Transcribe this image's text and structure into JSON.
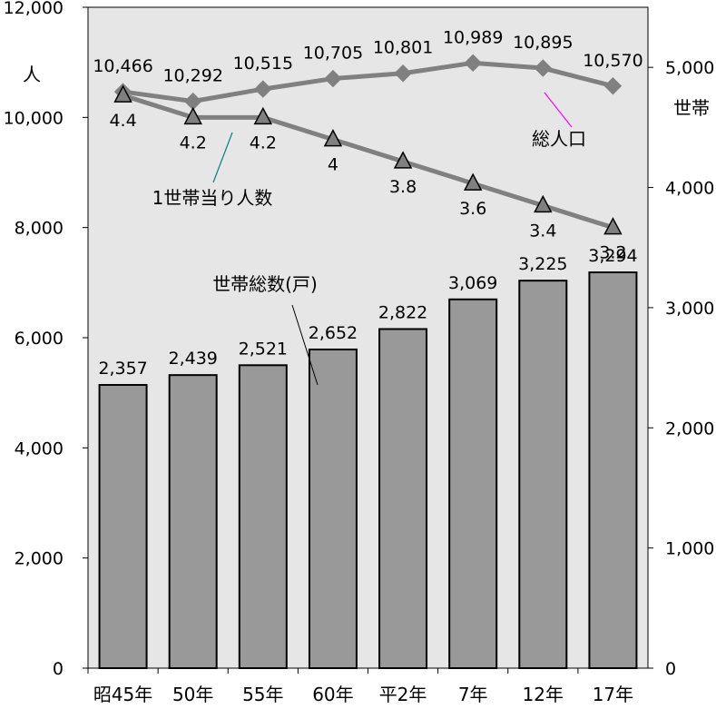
{
  "chart_data": {
    "type": "bar",
    "categories": [
      "昭45年",
      "50年",
      "55年",
      "60年",
      "平2年",
      "7年",
      "12年",
      "17年"
    ],
    "y_left": {
      "unit_label": "人",
      "ylim": [
        0,
        12000
      ],
      "ticks": [
        0,
        2000,
        4000,
        6000,
        8000,
        10000,
        12000
      ],
      "tick_labels": [
        "0",
        "2,000",
        "4,000",
        "6,000",
        "8,000",
        "10,000",
        "12,000"
      ]
    },
    "y_right": {
      "unit_label": "世帯",
      "ylim": [
        0,
        5500
      ],
      "ticks": [
        0,
        1000,
        2000,
        3000,
        4000,
        5000
      ],
      "tick_labels": [
        "0",
        "1,000",
        "2,000",
        "3,000",
        "4,000",
        "5,000"
      ]
    },
    "series": [
      {
        "name": "世帯総数(戸)",
        "type": "bar",
        "axis": "right",
        "values": [
          2357,
          2439,
          2521,
          2652,
          2822,
          3069,
          3225,
          3294
        ],
        "labels": [
          "2,357",
          "2,439",
          "2,521",
          "2,652",
          "2,822",
          "3,069",
          "3,225",
          "3,294"
        ],
        "color": "#999999"
      },
      {
        "name": "総人口",
        "type": "line",
        "marker": "diamond",
        "axis": "left",
        "values": [
          10466,
          10292,
          10515,
          10705,
          10801,
          10989,
          10895,
          10570
        ],
        "labels": [
          "10,466",
          "10,292",
          "10,515",
          "10,705",
          "10,801",
          "10,989",
          "10,895",
          "10,570"
        ],
        "color": "#808080",
        "annotation_color": "#ff00ff"
      },
      {
        "name": "1世帯当り人数",
        "type": "line",
        "marker": "triangle",
        "values": [
          4.4,
          4.2,
          4.2,
          4,
          3.8,
          3.6,
          3.4,
          3.2
        ],
        "labels": [
          "4.4",
          "4.2",
          "4.2",
          "4",
          "3.8",
          "3.6",
          "3.4",
          "3.2"
        ],
        "color": "#808080",
        "annotation_color": "#008080"
      }
    ],
    "annotations": {
      "households_total": "世帯総数(戸)",
      "total_population": "総人口",
      "persons_per_household": "1世帯当り人数"
    },
    "plot_background": "#e6e6e6",
    "grid": false,
    "legend": "none"
  }
}
